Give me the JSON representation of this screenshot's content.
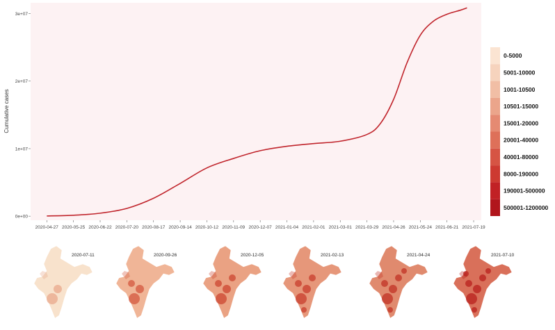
{
  "chart_data": {
    "type": "line",
    "title": "",
    "xlabel": "",
    "ylabel": "Cumulative cases",
    "x_ticks": [
      "2020-04-27",
      "2020-05-25",
      "2020-06-22",
      "2020-07-20",
      "2020-08-17",
      "2020-09-14",
      "2020-10-12",
      "2020-11-09",
      "2020-12-07",
      "2021-01-04",
      "2021-02-01",
      "2021-03-01",
      "2021-03-29",
      "2021-04-26",
      "2021-05-24",
      "2021-06-21",
      "2021-07-19"
    ],
    "y_ticks": [
      {
        "value": 0,
        "label": "0e+00"
      },
      {
        "value": 10000000,
        "label": "1e+07"
      },
      {
        "value": 20000000,
        "label": "2e+07"
      },
      {
        "value": 30000000,
        "label": "3e+07"
      }
    ],
    "ylim": [
      -600000,
      31600000
    ],
    "xlim": [
      "2020-04-10",
      "2021-07-27"
    ],
    "grid": false,
    "series": [
      {
        "color": "#c0242b",
        "points": [
          [
            "2020-04-27",
            30000
          ],
          [
            "2020-05-25",
            140000
          ],
          [
            "2020-06-22",
            440000
          ],
          [
            "2020-07-20",
            1150000
          ],
          [
            "2020-08-17",
            2650000
          ],
          [
            "2020-09-14",
            4850000
          ],
          [
            "2020-10-12",
            7150000
          ],
          [
            "2020-11-09",
            8550000
          ],
          [
            "2020-12-07",
            9700000
          ],
          [
            "2021-01-04",
            10350000
          ],
          [
            "2021-02-01",
            10750000
          ],
          [
            "2021-03-01",
            11100000
          ],
          [
            "2021-03-29",
            12100000
          ],
          [
            "2021-04-12",
            13700000
          ],
          [
            "2021-04-26",
            17300000
          ],
          [
            "2021-05-10",
            22700000
          ],
          [
            "2021-05-24",
            26800000
          ],
          [
            "2021-06-07",
            28900000
          ],
          [
            "2021-06-21",
            29900000
          ],
          [
            "2021-07-05",
            30500000
          ],
          [
            "2021-07-12",
            30850000
          ]
        ]
      }
    ],
    "legend": {
      "placement": "right",
      "entries": [
        {
          "label": "0-5000",
          "color": "#fbe4d2"
        },
        {
          "label": "5001-10000",
          "color": "#f6d3bd"
        },
        {
          "label": "1001-10500",
          "color": "#f1bea5"
        },
        {
          "label": "10501-15000",
          "color": "#eba58b"
        },
        {
          "label": "15001-20000",
          "color": "#e58a72"
        },
        {
          "label": "20001-40000",
          "color": "#de7059"
        },
        {
          "label": "40001-80000",
          "color": "#d65444"
        },
        {
          "label": "8000-190000",
          "color": "#cd3a31"
        },
        {
          "label": "190001-500000",
          "color": "#c12125"
        },
        {
          "label": "500001-1200000",
          "color": "#b1151c"
        }
      ]
    }
  },
  "maps": [
    {
      "date": "2020-07-11",
      "fill": "#f8e2cc",
      "hot": "#e9a88c"
    },
    {
      "date": "2020-09-26",
      "fill": "#f0b597",
      "hot": "#d4583f"
    },
    {
      "date": "2020-12-05",
      "fill": "#eaa283",
      "hot": "#cc4530"
    },
    {
      "date": "2021-02-13",
      "fill": "#e6977a",
      "hot": "#c83d2d"
    },
    {
      "date": "2021-04-24",
      "fill": "#e08a6e",
      "hot": "#c23126"
    },
    {
      "date": "2021-07-10",
      "fill": "#d9705a",
      "hot": "#b8201e"
    }
  ],
  "colors": {
    "panel_bg": "#fdf2f3",
    "line": "#c0242b"
  }
}
